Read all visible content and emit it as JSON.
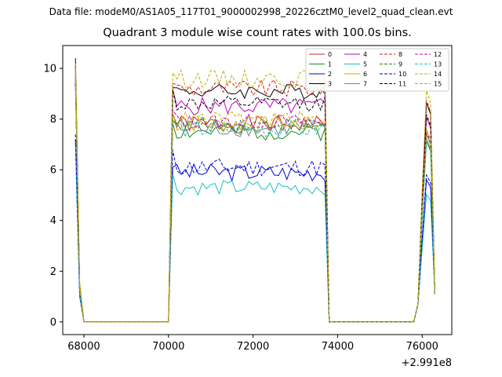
{
  "header": {
    "data_file": "Data file: modeM0/AS1A05_117T01_9000002998_20226cztM0_level2_quad_clean.evt"
  },
  "chart_data": {
    "type": "line",
    "title": "Quadrant 3 module wise count rates with 100.0s bins.",
    "xlabel": "",
    "ylabel": "",
    "x_offset_label": "+2.991e8",
    "x_offset": 299100000,
    "xlim": [
      67500,
      76700
    ],
    "ylim": [
      -0.5,
      10.9
    ],
    "xticks": [
      68000,
      70000,
      72000,
      74000,
      76000
    ],
    "xtick_labels": [
      "68000",
      "70000",
      "72000",
      "74000",
      "76000"
    ],
    "yticks": [
      0,
      2,
      4,
      6,
      8,
      10
    ],
    "ytick_labels": [
      "0",
      "2",
      "4",
      "6",
      "8",
      "10"
    ],
    "grid": false,
    "legend_position": "top-right",
    "segments": [
      {
        "x": [
          67800,
          67900,
          68000,
          68100,
          68200,
          68300,
          68400,
          68500,
          68600,
          68700,
          68800,
          68900,
          69000,
          69100,
          69200,
          69300,
          69400,
          69500,
          69600,
          69700,
          69800,
          69900,
          70000,
          70100,
          70200,
          70300,
          70400,
          70500,
          70600,
          70700,
          70800,
          70900,
          71000,
          71100,
          71200,
          71300,
          71400,
          71500,
          71600,
          71700,
          71800,
          71900,
          72000,
          72100,
          72200,
          72300,
          72400,
          72500,
          72600,
          72700,
          72800,
          72900,
          73000,
          73100,
          73200,
          73300,
          73400,
          73500,
          73600,
          73700,
          73800,
          73900,
          74000,
          74100,
          74200,
          74300,
          74400,
          74500,
          74600,
          74700,
          74800,
          74900,
          75000,
          75100,
          75200,
          75300,
          75400,
          75500,
          75600,
          75700,
          75800,
          75900,
          76000,
          76100,
          76200,
          76300
        ]
      }
    ],
    "series": [
      {
        "name": "0",
        "color": "#d62020",
        "dash": false,
        "profile": [
          10.0,
          1.4,
          0.0
        ],
        "base": 7.8,
        "amp": 0.35,
        "seed": 1
      },
      {
        "name": "1",
        "color": "#1a8a1a",
        "dash": false,
        "profile": [
          9.6,
          1.3,
          0.0
        ],
        "base": 7.5,
        "amp": 0.35,
        "seed": 2
      },
      {
        "name": "2",
        "color": "#0000d8",
        "dash": false,
        "profile": [
          7.2,
          1.0,
          0.0
        ],
        "base": 5.9,
        "amp": 0.35,
        "seed": 3
      },
      {
        "name": "3",
        "color": "#000000",
        "dash": false,
        "profile": [
          10.4,
          1.5,
          0.0
        ],
        "base": 9.1,
        "amp": 0.3,
        "seed": 4
      },
      {
        "name": "4",
        "color": "#c000c0",
        "dash": false,
        "profile": [
          9.8,
          1.4,
          0.0
        ],
        "base": 8.5,
        "amp": 0.35,
        "seed": 5
      },
      {
        "name": "5",
        "color": "#18c0c0",
        "dash": false,
        "profile": [
          7.0,
          1.0,
          0.0
        ],
        "base": 5.3,
        "amp": 0.3,
        "seed": 6
      },
      {
        "name": "6",
        "color": "#c0b000",
        "dash": false,
        "profile": [
          9.7,
          1.3,
          0.0
        ],
        "base": 7.8,
        "amp": 0.3,
        "seed": 7
      },
      {
        "name": "7",
        "color": "#808080",
        "dash": false,
        "profile": [
          9.5,
          1.3,
          0.0
        ],
        "base": 7.6,
        "amp": 0.3,
        "seed": 8
      },
      {
        "name": "8",
        "color": "#d62020",
        "dash": true,
        "profile": [
          10.1,
          1.4,
          0.0
        ],
        "base": 9.2,
        "amp": 0.35,
        "seed": 9
      },
      {
        "name": "9",
        "color": "#1a8a1a",
        "dash": true,
        "profile": [
          9.6,
          1.3,
          0.0
        ],
        "base": 7.8,
        "amp": 0.3,
        "seed": 10
      },
      {
        "name": "10",
        "color": "#0000d8",
        "dash": true,
        "profile": [
          7.4,
          1.1,
          0.0
        ],
        "base": 6.1,
        "amp": 0.35,
        "seed": 11
      },
      {
        "name": "11",
        "color": "#000000",
        "dash": true,
        "profile": [
          9.4,
          1.3,
          0.0
        ],
        "base": 8.6,
        "amp": 0.3,
        "seed": 12
      },
      {
        "name": "12",
        "color": "#c000c0",
        "dash": true,
        "profile": [
          9.4,
          1.3,
          0.0
        ],
        "base": 7.9,
        "amp": 0.3,
        "seed": 13
      },
      {
        "name": "13",
        "color": "#18c0c0",
        "dash": true,
        "profile": [
          9.3,
          1.2,
          0.0
        ],
        "base": 7.6,
        "amp": 0.35,
        "seed": 14
      },
      {
        "name": "14",
        "color": "#c0b000",
        "dash": true,
        "profile": [
          10.2,
          1.5,
          0.0
        ],
        "base": 9.6,
        "amp": 0.35,
        "seed": 15
      },
      {
        "name": "15",
        "color": "#c0b000",
        "dash": true,
        "profile": [
          9.9,
          1.4,
          0.0
        ],
        "base": 8.0,
        "amp": 0.3,
        "seed": 16
      }
    ]
  }
}
